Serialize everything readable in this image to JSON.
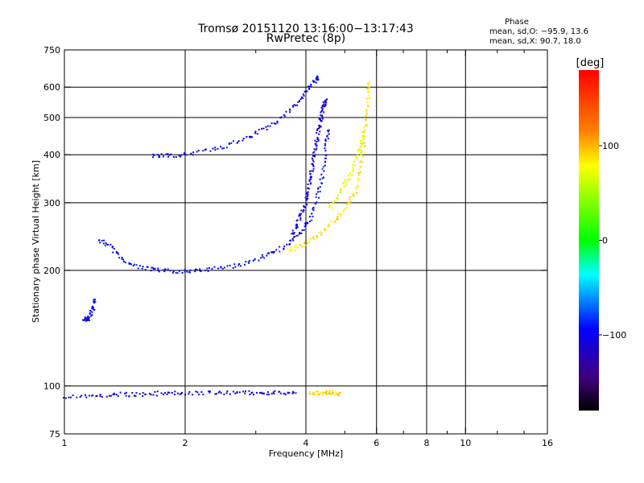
{
  "chart_data": {
    "type": "scatter",
    "title": "Tromsø 20151120 13:16:00−13:17:43",
    "subtitle": "RwPretec (8p)",
    "xlabel": "Frequency [MHz]",
    "ylabel": "Stationary phase Virtual Height [km]",
    "x_scale": "log",
    "y_scale": "log",
    "xlim": [
      1,
      16
    ],
    "ylim": [
      75,
      750
    ],
    "x_ticks": [
      1,
      2,
      4,
      6,
      8,
      10,
      16
    ],
    "x_tick_labels": [
      "1",
      "2",
      "4",
      "6",
      "8",
      "10",
      "16"
    ],
    "x_minor_ticks": [
      3,
      5,
      7,
      9,
      12,
      14
    ],
    "y_ticks": [
      75,
      100,
      200,
      300,
      400,
      500,
      600,
      750
    ],
    "y_tick_labels": [
      "75",
      "100",
      "200",
      "300",
      "400",
      "500",
      "600",
      "750"
    ],
    "x_gridlines": [
      2,
      4,
      6,
      8,
      10
    ],
    "y_gridlines": [
      100,
      200,
      300,
      400,
      500,
      600
    ],
    "grid": true,
    "legend": {
      "title": "Phase",
      "line1": "mean, sd,O: −95.9, 13.6",
      "line2": "mean, sd,X:  90.7, 18.0",
      "placement": "top-right"
    },
    "colorbar": {
      "label": "[deg]",
      "range": [
        -180,
        180
      ],
      "tick_values": [
        100,
        0,
        -100
      ],
      "tick_labels": [
        "100",
        "0",
        "−100"
      ],
      "colors": [
        "#ff0000",
        "#ff8000",
        "#ffff00",
        "#00ff00",
        "#00ffff",
        "#0000ff",
        "#400080",
        "#000000"
      ]
    },
    "series": [
      {
        "trace": "f-layer-o-lower",
        "phase": -100,
        "points": [
          [
            1.22,
            240
          ],
          [
            1.3,
            232
          ],
          [
            1.38,
            215
          ],
          [
            1.5,
            205
          ],
          [
            1.65,
            201
          ],
          [
            1.8,
            199
          ],
          [
            2.0,
            199
          ],
          [
            2.2,
            200
          ],
          [
            2.5,
            203
          ],
          [
            2.8,
            208
          ],
          [
            3.1,
            216
          ],
          [
            3.4,
            225
          ],
          [
            3.7,
            238
          ],
          [
            3.9,
            252
          ],
          [
            4.1,
            272
          ],
          [
            4.25,
            300
          ],
          [
            4.35,
            335
          ],
          [
            4.45,
            380
          ],
          [
            4.5,
            430
          ],
          [
            4.55,
            470
          ]
        ]
      },
      {
        "trace": "f-layer-o-spread",
        "phase": -110,
        "points": [
          [
            3.7,
            250
          ],
          [
            3.8,
            262
          ],
          [
            3.9,
            280
          ],
          [
            4.0,
            300
          ],
          [
            4.05,
            320
          ],
          [
            4.1,
            345
          ],
          [
            4.15,
            370
          ],
          [
            4.2,
            400
          ],
          [
            4.25,
            430
          ],
          [
            4.3,
            460
          ],
          [
            4.35,
            490
          ],
          [
            4.4,
            520
          ],
          [
            4.45,
            545
          ],
          [
            4.5,
            560
          ]
        ]
      },
      {
        "trace": "f-layer-x",
        "phase": 90,
        "points": [
          [
            3.6,
            225
          ],
          [
            3.9,
            232
          ],
          [
            4.2,
            242
          ],
          [
            4.5,
            258
          ],
          [
            4.8,
            275
          ],
          [
            5.1,
            295
          ],
          [
            5.3,
            320
          ],
          [
            5.45,
            360
          ],
          [
            5.55,
            410
          ],
          [
            5.62,
            460
          ],
          [
            5.68,
            520
          ],
          [
            5.72,
            580
          ],
          [
            5.75,
            620
          ]
        ]
      },
      {
        "trace": "f-layer-x-spread",
        "phase": 75,
        "points": [
          [
            4.6,
            290
          ],
          [
            4.8,
            310
          ],
          [
            5.0,
            335
          ],
          [
            5.2,
            360
          ],
          [
            5.35,
            390
          ],
          [
            5.5,
            430
          ],
          [
            5.6,
            470
          ]
        ]
      },
      {
        "trace": "upper-o-trace",
        "phase": -105,
        "points": [
          [
            1.65,
            398
          ],
          [
            1.8,
            398
          ],
          [
            2.0,
            400
          ],
          [
            2.3,
            410
          ],
          [
            2.6,
            425
          ],
          [
            2.9,
            445
          ],
          [
            3.2,
            470
          ],
          [
            3.5,
            500
          ],
          [
            3.8,
            540
          ],
          [
            4.0,
            580
          ],
          [
            4.2,
            620
          ],
          [
            4.3,
            635
          ]
        ]
      },
      {
        "trace": "e-layer",
        "phase": -110,
        "points": [
          [
            1.0,
            94
          ],
          [
            1.15,
            94
          ],
          [
            1.3,
            95
          ],
          [
            1.45,
            95
          ],
          [
            1.6,
            95
          ],
          [
            1.8,
            96
          ],
          [
            2.0,
            96
          ],
          [
            2.3,
            96
          ],
          [
            2.6,
            96
          ],
          [
            2.9,
            96
          ],
          [
            3.2,
            96
          ],
          [
            3.5,
            96
          ],
          [
            3.8,
            96
          ]
        ]
      },
      {
        "trace": "e-layer-x",
        "phase": 95,
        "points": [
          [
            4.1,
            96
          ],
          [
            4.3,
            96
          ],
          [
            4.5,
            96
          ],
          [
            4.7,
            96
          ],
          [
            4.9,
            95
          ]
        ]
      },
      {
        "trace": "low-echo-cluster",
        "phase": -105,
        "points": [
          [
            1.12,
            150
          ],
          [
            1.14,
            148
          ],
          [
            1.16,
            152
          ],
          [
            1.18,
            160
          ],
          [
            1.2,
            170
          ]
        ]
      }
    ]
  }
}
